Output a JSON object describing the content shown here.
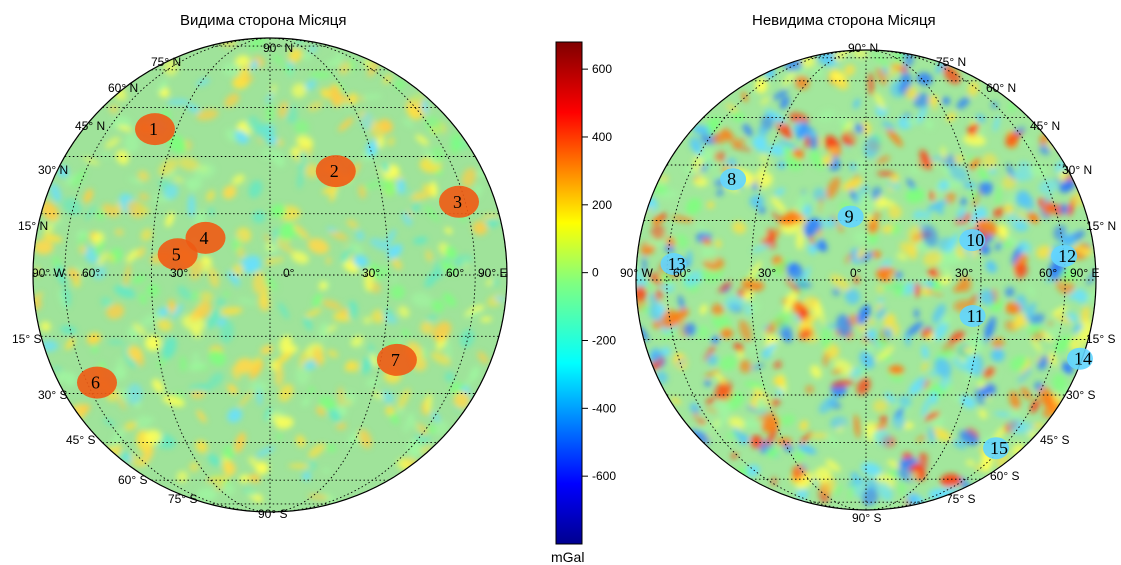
{
  "titles": {
    "near": "Видима сторона Місяця",
    "far": "Невидима сторона Місяця"
  },
  "near_side": {
    "lat_labels": [
      "90° N",
      "75° N",
      "60° N",
      "45° N",
      "30° N",
      "15° N",
      "15° S",
      "30° S",
      "45° S",
      "60° S",
      "75° S",
      "90° S"
    ],
    "lon_labels": [
      "90° W",
      "60°",
      "30°",
      "0°",
      "30°",
      "60°",
      "90° E"
    ],
    "features": [
      {
        "id": "1",
        "lat": 38,
        "lon": -38
      },
      {
        "id": "2",
        "lat": 26,
        "lon": 18
      },
      {
        "id": "3",
        "lat": 18,
        "lon": 57
      },
      {
        "id": "4",
        "lat": 9,
        "lon": -16
      },
      {
        "id": "5",
        "lat": 5,
        "lon": -23
      },
      {
        "id": "6",
        "lat": -27,
        "lon": -55
      },
      {
        "id": "7",
        "lat": -21,
        "lon": 35
      }
    ]
  },
  "far_side": {
    "lat_labels": [
      "90° N",
      "75° N",
      "60° N",
      "45° N",
      "30° N",
      "15° N",
      "15° S",
      "30° S",
      "45° S",
      "60° S",
      "75° S",
      "90° S"
    ],
    "lon_labels": [
      "90° W",
      "60°",
      "30°",
      "0°",
      "30°",
      "60°",
      "90° E"
    ],
    "features": [
      {
        "id": "8",
        "lat": 26,
        "lon": -40
      },
      {
        "id": "9",
        "lat": 16,
        "lon": -4
      },
      {
        "id": "10",
        "lat": 10,
        "lon": 28
      },
      {
        "id": "11",
        "lat": -9,
        "lon": 28
      },
      {
        "id": "12",
        "lat": 6,
        "lon": 60
      },
      {
        "id": "13",
        "lat": 4,
        "lon": -57
      },
      {
        "id": "14",
        "lat": -20,
        "lon": 82
      },
      {
        "id": "15",
        "lat": -47,
        "lon": 56
      }
    ]
  },
  "colorbar": {
    "unit": "mGal",
    "ticks": [
      "600",
      "400",
      "200",
      "0",
      "-200",
      "-400",
      "-600"
    ],
    "range": [
      -800,
      680
    ],
    "tick_values": [
      600,
      400,
      200,
      0,
      -200,
      -400,
      -600
    ],
    "colormap": "jet"
  }
}
